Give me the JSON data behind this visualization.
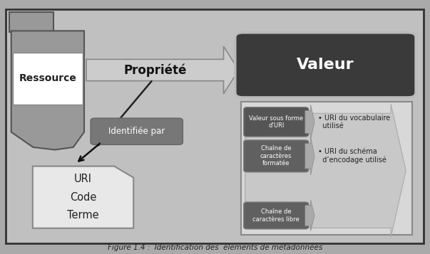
{
  "bg_color": "#c0c0c0",
  "fig_bg": "#aaaaaa",
  "title": "Figure 1.4 :  Identification des  éléments de métadonnées",
  "ressource_label": "Ressource",
  "valeur_label": "Valeur",
  "propriete_label": "Propriété",
  "identifiee_label": "Identifiée par",
  "uri_label": "URI\nCode\nTerme",
  "left_boxes": [
    {
      "label": "Valeur sous forme\nd’URI"
    },
    {
      "label": "Chaîne de\ncaractères\nformatée"
    },
    {
      "label": "Chaîne de\ncaractères libre"
    }
  ],
  "right_texts": [
    "• URI du vocabulaire\n  utilisé",
    "• URI du schéma\n  d’encodage utilisé",
    ""
  ]
}
